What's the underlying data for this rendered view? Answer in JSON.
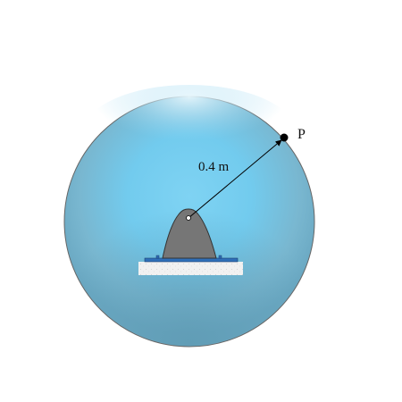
{
  "diagram": {
    "point_label": "P",
    "distance_label": "0.4 m",
    "colors": {
      "sphere_light": "#d2eef9",
      "sphere_mid": "#7fd0ef",
      "sphere_dark": "#6aa8c2",
      "sphere_outline": "#666666",
      "source_fill": "#767676",
      "base_plate": "#2f6fb8",
      "insulation_pad": "#eeeeee",
      "arrow": "#000000"
    }
  }
}
